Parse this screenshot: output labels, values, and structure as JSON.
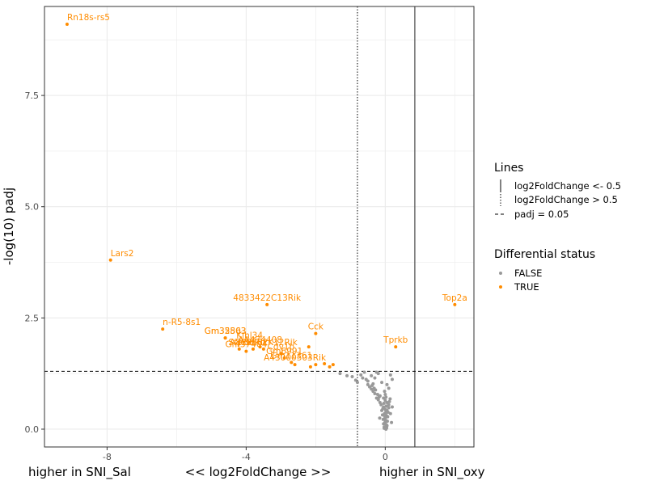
{
  "chart_data": {
    "type": "scatter",
    "title": "",
    "xlabel": "<< log2FoldChange >>",
    "ylabel": "-log(10) padj",
    "x_side_labels": {
      "left": "higher in SNI_Sal",
      "right": "higher in SNI_oxy"
    },
    "xlim": [
      -9.8,
      2.55
    ],
    "ylim": [
      -0.4,
      9.5
    ],
    "x_ticks": [
      -8,
      -4,
      0
    ],
    "x_tick_labels": [
      "-8",
      "-4",
      "0"
    ],
    "y_ticks": [
      0,
      2.5,
      5,
      7.5
    ],
    "y_tick_labels": [
      "0.0",
      "2.5",
      "5.0",
      "7.5"
    ],
    "grid": true,
    "reference_lines": {
      "vline_solid_x": 0.85,
      "vline_dotted_x": -0.8,
      "hline_dashed_y": 1.3
    },
    "colors": {
      "true": "#ff8c00",
      "false": "#999999",
      "panel_border": "#333333",
      "grid": "#ebebeb"
    },
    "legend_placement": "right",
    "legend": {
      "lines": {
        "title": "Lines",
        "items": [
          {
            "label": "log2FoldChange <- 0.5",
            "style": "solid"
          },
          {
            "label": "log2FoldChange > 0.5",
            "style": "dotted"
          },
          {
            "label": "padj = 0.05",
            "style": "dashed"
          }
        ]
      },
      "status": {
        "title": "Differential status",
        "items": [
          {
            "label": "FALSE",
            "color": "#999999"
          },
          {
            "label": "TRUE",
            "color": "#ff8c00"
          }
        ]
      }
    },
    "series": [
      {
        "name": "TRUE",
        "color": "#ff8c00",
        "points": [
          {
            "x": -9.15,
            "y": 9.1,
            "label": "Rn18s-rs5"
          },
          {
            "x": -7.9,
            "y": 3.8,
            "label": "Lars2"
          },
          {
            "x": -6.4,
            "y": 2.25,
            "label": "n-R5-8s1"
          },
          {
            "x": -3.4,
            "y": 2.8,
            "label": "4833422C13Rik"
          },
          {
            "x": 2.0,
            "y": 2.8,
            "label": "Top2a"
          },
          {
            "x": -2.0,
            "y": 2.15,
            "label": "Cck"
          },
          {
            "x": 0.3,
            "y": 1.85,
            "label": "Tprkb"
          },
          {
            "x": -4.6,
            "y": 2.05,
            "label": "Gm32503"
          },
          {
            "x": -4.6,
            "y": 2.05,
            "label": "Gm35863"
          },
          {
            "x": -3.9,
            "y": 1.95,
            "label": "Klhl34"
          },
          {
            "x": -3.6,
            "y": 1.85,
            "label": "AA474408"
          },
          {
            "x": -4.2,
            "y": 1.8,
            "label": "Sfpi1"
          },
          {
            "x": -4.0,
            "y": 1.75,
            "label": "Gm37404"
          },
          {
            "x": -3.8,
            "y": 1.8,
            "label": "P33Rik"
          },
          {
            "x": -3.5,
            "y": 1.8,
            "label": "A830082K12Rik"
          },
          {
            "x": -3.0,
            "y": 1.7,
            "label": "Cdv1b"
          },
          {
            "x": -2.9,
            "y": 1.6,
            "label": "Gm6991"
          },
          {
            "x": -2.7,
            "y": 1.5,
            "label": "Gm11361"
          },
          {
            "x": -2.6,
            "y": 1.45,
            "label": "A43000503Rik"
          },
          {
            "x": -2.0,
            "y": 1.45,
            "label": ""
          },
          {
            "x": -2.2,
            "y": 1.85,
            "label": ""
          },
          {
            "x": -2.15,
            "y": 1.4,
            "label": ""
          },
          {
            "x": -1.6,
            "y": 1.4,
            "label": ""
          },
          {
            "x": -1.5,
            "y": 1.45,
            "label": ""
          },
          {
            "x": -1.75,
            "y": 1.47,
            "label": ""
          }
        ]
      },
      {
        "name": "FALSE",
        "color": "#999999",
        "points": [
          {
            "x": -1.3,
            "y": 1.25
          },
          {
            "x": -1.1,
            "y": 1.2
          },
          {
            "x": -0.95,
            "y": 1.18
          },
          {
            "x": -0.85,
            "y": 1.1
          },
          {
            "x": -0.7,
            "y": 1.22
          },
          {
            "x": -0.6,
            "y": 1.28
          },
          {
            "x": -0.55,
            "y": 1.12
          },
          {
            "x": -0.5,
            "y": 1.0
          },
          {
            "x": -0.45,
            "y": 0.95
          },
          {
            "x": -0.4,
            "y": 0.9
          },
          {
            "x": -0.35,
            "y": 0.85
          },
          {
            "x": -0.3,
            "y": 0.8
          },
          {
            "x": -0.25,
            "y": 1.28
          },
          {
            "x": -0.2,
            "y": 1.25
          },
          {
            "x": -0.15,
            "y": 0.75
          },
          {
            "x": -0.1,
            "y": 1.05
          },
          {
            "x": -0.05,
            "y": 0.7
          },
          {
            "x": 0.0,
            "y": 0.65
          },
          {
            "x": 0.05,
            "y": 0.6
          },
          {
            "x": 0.1,
            "y": 0.55
          },
          {
            "x": 0.15,
            "y": 1.22
          },
          {
            "x": 0.2,
            "y": 1.12
          },
          {
            "x": -0.3,
            "y": 1.15
          },
          {
            "x": -0.4,
            "y": 1.2
          },
          {
            "x": -0.05,
            "y": 0.5
          },
          {
            "x": 0.0,
            "y": 0.45
          },
          {
            "x": 0.02,
            "y": 0.4
          },
          {
            "x": -0.02,
            "y": 0.35
          },
          {
            "x": 0.04,
            "y": 0.3
          },
          {
            "x": 0.0,
            "y": 0.25
          },
          {
            "x": 0.01,
            "y": 0.2
          },
          {
            "x": -0.01,
            "y": 0.15
          },
          {
            "x": 0.03,
            "y": 0.1
          },
          {
            "x": 0.0,
            "y": 0.05
          },
          {
            "x": 0.02,
            "y": 0.0
          },
          {
            "x": -0.03,
            "y": 0.02
          },
          {
            "x": 0.05,
            "y": 0.08
          },
          {
            "x": -0.05,
            "y": 0.12
          },
          {
            "x": 0.06,
            "y": 0.18
          },
          {
            "x": -0.06,
            "y": 0.22
          },
          {
            "x": 0.07,
            "y": 0.28
          },
          {
            "x": -0.08,
            "y": 0.32
          },
          {
            "x": 0.08,
            "y": 0.38
          },
          {
            "x": -0.1,
            "y": 0.42
          },
          {
            "x": 0.1,
            "y": 0.48
          },
          {
            "x": -0.12,
            "y": 0.55
          },
          {
            "x": 0.12,
            "y": 0.62
          },
          {
            "x": -0.15,
            "y": 0.6
          },
          {
            "x": 0.14,
            "y": 0.68
          },
          {
            "x": -0.18,
            "y": 0.72
          },
          {
            "x": -0.2,
            "y": 0.66
          },
          {
            "x": -0.22,
            "y": 0.78
          },
          {
            "x": -0.25,
            "y": 0.7
          },
          {
            "x": -0.28,
            "y": 0.88
          },
          {
            "x": -0.32,
            "y": 0.92
          },
          {
            "x": -0.35,
            "y": 1.02
          },
          {
            "x": -0.38,
            "y": 0.98
          },
          {
            "x": -0.5,
            "y": 1.08
          },
          {
            "x": -0.65,
            "y": 1.15
          },
          {
            "x": -0.8,
            "y": 1.05
          },
          {
            "x": 0.05,
            "y": 1.0
          },
          {
            "x": 0.1,
            "y": 0.92
          },
          {
            "x": -0.02,
            "y": 0.85
          },
          {
            "x": 0.0,
            "y": 0.78
          },
          {
            "x": 0.02,
            "y": 0.72
          },
          {
            "x": -0.04,
            "y": 0.58
          },
          {
            "x": 0.03,
            "y": 0.52
          },
          {
            "x": -0.07,
            "y": 0.46
          },
          {
            "x": 0.05,
            "y": 0.42
          },
          {
            "x": -0.03,
            "y": 0.05
          },
          {
            "x": 0.04,
            "y": 0.03
          },
          {
            "x": 0.0,
            "y": 0.12
          },
          {
            "x": -0.01,
            "y": 0.28
          },
          {
            "x": 0.01,
            "y": 0.34
          },
          {
            "x": 0.15,
            "y": 0.35
          },
          {
            "x": 0.18,
            "y": 0.15
          },
          {
            "x": -0.16,
            "y": 0.25
          },
          {
            "x": 0.2,
            "y": 0.5
          }
        ]
      }
    ]
  }
}
